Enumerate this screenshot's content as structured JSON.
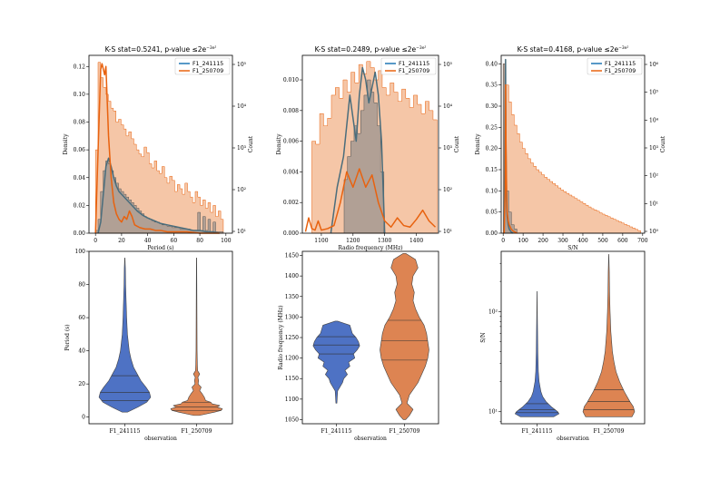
{
  "colors": {
    "blue": "#1f77b4",
    "orange": "#e8620f",
    "hist_orange": "#f0a878",
    "hist_grey": "#8c8c8c",
    "kde_blue_dark": "#4a6d7c",
    "violin_blue": "#4e72c4",
    "violin_orange": "#dd8452"
  },
  "legend": [
    "F1_241115",
    "F1_250709"
  ],
  "chart_data": [
    {
      "id": "period-hist",
      "type": "line",
      "title_prefix": "K-S stat=0.5241, p-value ",
      "title_pv": "≤2e",
      "title_exp": "−3e²",
      "xlabel": "Period (s)",
      "ylabel": "Density",
      "ylabel2": "Count",
      "xlim": [
        -5,
        105
      ],
      "ylim": [
        0,
        0.128
      ],
      "xticks": [
        "0",
        "20",
        "40",
        "60",
        "80",
        "100"
      ],
      "xtick_values": [
        0,
        20,
        40,
        60,
        80,
        100
      ],
      "yticks": [
        "0.00",
        "0.02",
        "0.04",
        "0.06",
        "0.08",
        "0.10",
        "0.12"
      ],
      "ytick_values": [
        0,
        0.02,
        0.04,
        0.06,
        0.08,
        0.1,
        0.12
      ],
      "y2ticks": [
        "10¹",
        "10²",
        "10³",
        "10⁴",
        "10⁵"
      ],
      "series": [
        {
          "name": "F1_241115",
          "x": [
            2,
            4,
            6,
            8,
            10,
            12,
            14,
            16,
            18,
            20,
            24,
            28,
            32,
            36,
            40,
            45,
            50,
            55,
            60,
            65,
            70,
            75,
            80,
            85,
            90,
            95
          ],
          "values": [
            0,
            0.008,
            0.028,
            0.048,
            0.054,
            0.048,
            0.04,
            0.034,
            0.03,
            0.028,
            0.024,
            0.02,
            0.016,
            0.013,
            0.011,
            0.009,
            0.007,
            0.006,
            0.005,
            0.004,
            0.003,
            0.002,
            0.002,
            0.001,
            0.001,
            0
          ]
        },
        {
          "name": "F1_250709",
          "x": [
            0,
            2,
            4,
            5,
            6,
            7,
            8,
            10,
            12,
            14,
            16,
            18,
            20,
            22,
            24,
            26,
            28,
            30,
            34,
            38,
            42,
            46,
            50,
            55,
            60,
            70,
            80,
            95
          ],
          "values": [
            0,
            0.06,
            0.118,
            0.122,
            0.118,
            0.114,
            0.12,
            0.07,
            0.04,
            0.022,
            0.014,
            0.01,
            0.008,
            0.012,
            0.01,
            0.016,
            0.012,
            0.006,
            0.004,
            0.003,
            0.003,
            0.002,
            0.002,
            0.001,
            0.001,
            0.001,
            0,
            0
          ]
        }
      ],
      "hist_orange": [
        0.06,
        0.123,
        0.112,
        0.105,
        0.1,
        0.095,
        0.09,
        0.088,
        0.08,
        0.082,
        0.078,
        0.075,
        0.07,
        0.073,
        0.068,
        0.064,
        0.06,
        0.057,
        0.055,
        0.062,
        0.058,
        0.05,
        0.047,
        0.052,
        0.045,
        0.043,
        0.048,
        0.04,
        0.036,
        0.041,
        0.038,
        0.03,
        0.035,
        0.032,
        0.028,
        0.036,
        0.03,
        0.026,
        0.022,
        0.03,
        0.026,
        0.02,
        0.024,
        0.018,
        0.022,
        0.015,
        0.02,
        0.012,
        0.016,
        0.01
      ],
      "hist_grey": [
        0.002,
        0.01,
        0.03,
        0.045,
        0.052,
        0.05,
        0.045,
        0.04,
        0.036,
        0.032,
        0.03,
        0.028,
        0.026,
        0.024,
        0.022,
        0.02,
        0.018,
        0.016,
        0.014,
        0.012,
        0.011,
        0.01,
        0.009,
        0.008,
        0.008,
        0.007,
        0.006,
        0.006,
        0.005,
        0.005,
        0.004,
        0.004,
        0.004,
        0.003,
        0.003,
        0.003,
        0.003,
        0.002,
        0.002,
        0.002,
        0.015,
        0.002,
        0.012,
        0.002,
        0.01,
        0.001,
        0.008,
        0.001,
        0.001,
        0.001
      ]
    },
    {
      "id": "rf-hist",
      "type": "line",
      "title_prefix": "K-S stat=0.2489, p-value ",
      "title_pv": "≤2e",
      "title_exp": "−3e²",
      "xlabel": "Radio frequency (MHz)",
      "ylabel": "Density",
      "ylabel2": "Count",
      "xlim": [
        1040,
        1470
      ],
      "ylim": [
        0,
        0.0116
      ],
      "xticks": [
        "1100",
        "1200",
        "1300",
        "1400"
      ],
      "xtick_values": [
        1100,
        1200,
        1300,
        1400
      ],
      "yticks": [
        "0.000",
        "0.002",
        "0.004",
        "0.006",
        "0.008",
        "0.010"
      ],
      "ytick_values": [
        0,
        0.002,
        0.004,
        0.006,
        0.008,
        0.01
      ],
      "y2ticks": [
        "10¹",
        "10²",
        "10³",
        "10⁴",
        "10⁵"
      ],
      "series": [
        {
          "name": "F1_241115",
          "x": [
            1130,
            1140,
            1150,
            1160,
            1170,
            1180,
            1190,
            1200,
            1210,
            1220,
            1230,
            1240,
            1250,
            1260,
            1270,
            1280,
            1290,
            1300
          ],
          "values": [
            0,
            0.0015,
            0.003,
            0.004,
            0.005,
            0.007,
            0.009,
            0.0075,
            0.006,
            0.009,
            0.0108,
            0.01,
            0.0085,
            0.0095,
            0.0105,
            0.009,
            0.006,
            0
          ]
        },
        {
          "name": "F1_250709",
          "x": [
            1050,
            1060,
            1070,
            1080,
            1090,
            1100,
            1120,
            1140,
            1160,
            1180,
            1200,
            1220,
            1240,
            1260,
            1280,
            1300,
            1320,
            1340,
            1360,
            1380,
            1400,
            1420,
            1440,
            1460
          ],
          "values": [
            0.0001,
            0.001,
            0.0003,
            0.0002,
            0.0008,
            0.0002,
            0.0003,
            0.0005,
            0.002,
            0.004,
            0.003,
            0.0042,
            0.003,
            0.0038,
            0.002,
            0.0008,
            0.0004,
            0.001,
            0.0005,
            0.0004,
            0.0009,
            0.0015,
            0.0008,
            0.0004
          ]
        }
      ],
      "hist_orange": [
        0.006,
        0.0058,
        0.0078,
        0.007,
        0.0075,
        0.009,
        0.0095,
        0.0088,
        0.01,
        0.0092,
        0.0105,
        0.0098,
        0.011,
        0.0104,
        0.0112,
        0.0108,
        0.01,
        0.0106,
        0.0095,
        0.009,
        0.0098,
        0.0092,
        0.0086,
        0.0094,
        0.0088,
        0.0082,
        0.009,
        0.0084,
        0.0078,
        0.0086,
        0.008,
        0.0074
      ],
      "hist_grey": [
        0,
        0,
        0,
        0,
        0.0035,
        0.005,
        0.006,
        0.007,
        0.0065,
        0.008,
        0.009,
        0.01,
        0.0092,
        0.0085,
        0.007,
        0.004,
        0,
        0,
        0,
        0,
        0,
        0,
        0,
        0,
        0,
        0,
        0,
        0,
        0,
        0,
        0,
        0
      ]
    },
    {
      "id": "sn-hist",
      "type": "line",
      "title_prefix": "K-S stat=0.4168, p-value ",
      "title_pv": "≤2e",
      "title_exp": "−3e²",
      "xlabel": "S/N",
      "ylabel": "Density",
      "ylabel2": "Count",
      "xlim": [
        -10,
        710
      ],
      "ylim": [
        0,
        0.42
      ],
      "xticks": [
        "0",
        "100",
        "200",
        "300",
        "400",
        "500",
        "600",
        "700"
      ],
      "xtick_values": [
        0,
        100,
        200,
        300,
        400,
        500,
        600,
        700
      ],
      "yticks": [
        "0.00",
        "0.05",
        "0.10",
        "0.15",
        "0.20",
        "0.25",
        "0.30",
        "0.35",
        "0.40"
      ],
      "ytick_values": [
        0,
        0.05,
        0.1,
        0.15,
        0.2,
        0.25,
        0.3,
        0.35,
        0.4
      ],
      "y2ticks": [
        "10⁰",
        "10¹",
        "10²",
        "10³",
        "10⁴",
        "10⁵",
        "10⁶"
      ],
      "series": [
        {
          "name": "F1_241115",
          "x": [
            5,
            10,
            12,
            14,
            16,
            18,
            20,
            25,
            30,
            40,
            50
          ],
          "values": [
            0,
            0.3,
            0.41,
            0.2,
            0.1,
            0.06,
            0.04,
            0.02,
            0.01,
            0.003,
            0
          ]
        },
        {
          "name": "F1_250709",
          "x": [
            5,
            10,
            12,
            14,
            16,
            18,
            20,
            25,
            30,
            40,
            50,
            70
          ],
          "values": [
            0,
            0.1,
            0.35,
            0.22,
            0.14,
            0.08,
            0.05,
            0.03,
            0.02,
            0.01,
            0.005,
            0
          ]
        }
      ],
      "hist_orange": [
        0.4,
        0.35,
        0.31,
        0.28,
        0.255,
        0.235,
        0.215,
        0.2,
        0.188,
        0.176,
        0.166,
        0.158,
        0.15,
        0.144,
        0.138,
        0.132,
        0.127,
        0.122,
        0.117,
        0.112,
        0.107,
        0.102,
        0.098,
        0.094,
        0.09,
        0.086,
        0.082,
        0.078,
        0.074,
        0.07,
        0.066,
        0.062,
        0.058,
        0.055,
        0.052,
        0.048,
        0.045,
        0.042,
        0.039,
        0.036,
        0.033,
        0.03,
        0.027,
        0.024,
        0.021,
        0.018,
        0.015,
        0.012,
        0.009,
        0.006
      ],
      "hist_grey": [
        0.4,
        0.1,
        0.05,
        0.02,
        0.01,
        0,
        0,
        0,
        0,
        0,
        0,
        0,
        0,
        0,
        0,
        0,
        0,
        0,
        0,
        0,
        0,
        0,
        0,
        0,
        0,
        0,
        0,
        0,
        0,
        0,
        0,
        0,
        0,
        0,
        0,
        0,
        0,
        0,
        0,
        0,
        0,
        0,
        0,
        0,
        0,
        0,
        0,
        0,
        0,
        0
      ]
    },
    {
      "id": "period-violin",
      "type": "violin",
      "xlabel": "observation",
      "ylabel": "Period (s)",
      "categories": [
        "F1_241115",
        "F1_250709"
      ],
      "ylim": [
        -4,
        100
      ],
      "yticks": [
        "0",
        "20",
        "40",
        "60",
        "80",
        "100"
      ],
      "ytick_values": [
        0,
        20,
        40,
        60,
        80,
        100
      ],
      "series": [
        {
          "name": "F1_241115",
          "y": [
            3,
            6,
            9,
            12,
            15,
            18,
            22,
            26,
            30,
            35,
            40,
            50,
            60,
            70,
            80,
            90,
            96
          ],
          "widths": [
            0.1,
            0.5,
            0.85,
            1.0,
            0.95,
            0.82,
            0.62,
            0.48,
            0.34,
            0.24,
            0.17,
            0.1,
            0.07,
            0.05,
            0.03,
            0.02,
            0.005
          ],
          "quartiles": [
            10,
            15,
            25
          ]
        },
        {
          "name": "F1_250709",
          "y": [
            1,
            3,
            4,
            5,
            6,
            7,
            8,
            9,
            10,
            12,
            14,
            16,
            18,
            20,
            22,
            24,
            26,
            28,
            32,
            40,
            60,
            80,
            96
          ],
          "widths": [
            0.1,
            0.7,
            0.95,
            1.0,
            0.8,
            0.9,
            0.6,
            0.55,
            0.35,
            0.3,
            0.22,
            0.12,
            0.18,
            0.06,
            0.08,
            0.05,
            0.12,
            0.04,
            0.03,
            0.02,
            0.015,
            0.01,
            0.005
          ],
          "quartiles": [
            4,
            6,
            9
          ]
        }
      ]
    },
    {
      "id": "rf-violin",
      "type": "violin",
      "xlabel": "observation",
      "ylabel": "Radio frequency (MHz)",
      "categories": [
        "F1_241115",
        "F1_250709"
      ],
      "ylim": [
        1040,
        1460
      ],
      "yticks": [
        "1050",
        "1100",
        "1150",
        "1200",
        "1250",
        "1300",
        "1350",
        "1400",
        "1450"
      ],
      "ytick_values": [
        1050,
        1100,
        1150,
        1200,
        1250,
        1300,
        1350,
        1400,
        1450
      ],
      "series": [
        {
          "name": "F1_241115",
          "y": [
            1090,
            1120,
            1140,
            1150,
            1160,
            1170,
            1180,
            1190,
            1200,
            1210,
            1220,
            1230,
            1240,
            1250,
            1260,
            1270,
            1280,
            1290
          ],
          "widths": [
            0.02,
            0.05,
            0.25,
            0.3,
            0.45,
            0.35,
            0.55,
            0.5,
            0.75,
            0.7,
            0.85,
            0.95,
            0.9,
            0.8,
            0.65,
            0.6,
            0.55,
            0.05
          ],
          "quartiles": [
            1210,
            1232,
            1252
          ]
        },
        {
          "name": "F1_250709",
          "y": [
            1050,
            1060,
            1075,
            1090,
            1110,
            1140,
            1160,
            1180,
            1200,
            1220,
            1240,
            1260,
            1280,
            1300,
            1320,
            1340,
            1360,
            1380,
            1400,
            1420,
            1440,
            1455
          ],
          "widths": [
            0.05,
            0.2,
            0.35,
            0.1,
            0.2,
            0.55,
            0.7,
            0.85,
            0.95,
            1.0,
            0.95,
            0.9,
            0.8,
            0.6,
            0.45,
            0.35,
            0.4,
            0.3,
            0.35,
            0.55,
            0.45,
            0.05
          ],
          "quartiles": [
            1195,
            1242,
            1292
          ]
        }
      ]
    },
    {
      "id": "sn-violin",
      "type": "violin",
      "xlabel": "observation",
      "ylabel": "S/N",
      "categories": [
        "F1_241115",
        "F1_250709"
      ],
      "yscale": "log",
      "ylim_log": [
        0.88,
        2.6
      ],
      "yticks": [
        "10¹",
        "10²"
      ],
      "ytick_values": [
        1,
        2
      ],
      "series": [
        {
          "name": "F1_241115",
          "y": [
            0.95,
            0.98,
            1.0,
            1.05,
            1.1,
            1.15,
            1.2,
            1.3,
            1.4,
            1.6,
            1.8,
            2.0,
            2.2
          ],
          "widths": [
            0.65,
            0.85,
            0.8,
            0.55,
            0.35,
            0.22,
            0.15,
            0.08,
            0.05,
            0.03,
            0.02,
            0.01,
            0.003
          ],
          "quartiles": [
            0.99,
            1.02,
            1.08
          ]
        },
        {
          "name": "F1_250709",
          "y": [
            0.95,
            1.0,
            1.05,
            1.1,
            1.2,
            1.3,
            1.4,
            1.5,
            1.6,
            1.8,
            2.0,
            2.2,
            2.4,
            2.57
          ],
          "widths": [
            0.9,
            1.0,
            0.95,
            0.82,
            0.6,
            0.42,
            0.28,
            0.2,
            0.14,
            0.08,
            0.05,
            0.03,
            0.02,
            0.003
          ],
          "quartiles": [
            1.02,
            1.1,
            1.22
          ]
        }
      ]
    }
  ]
}
